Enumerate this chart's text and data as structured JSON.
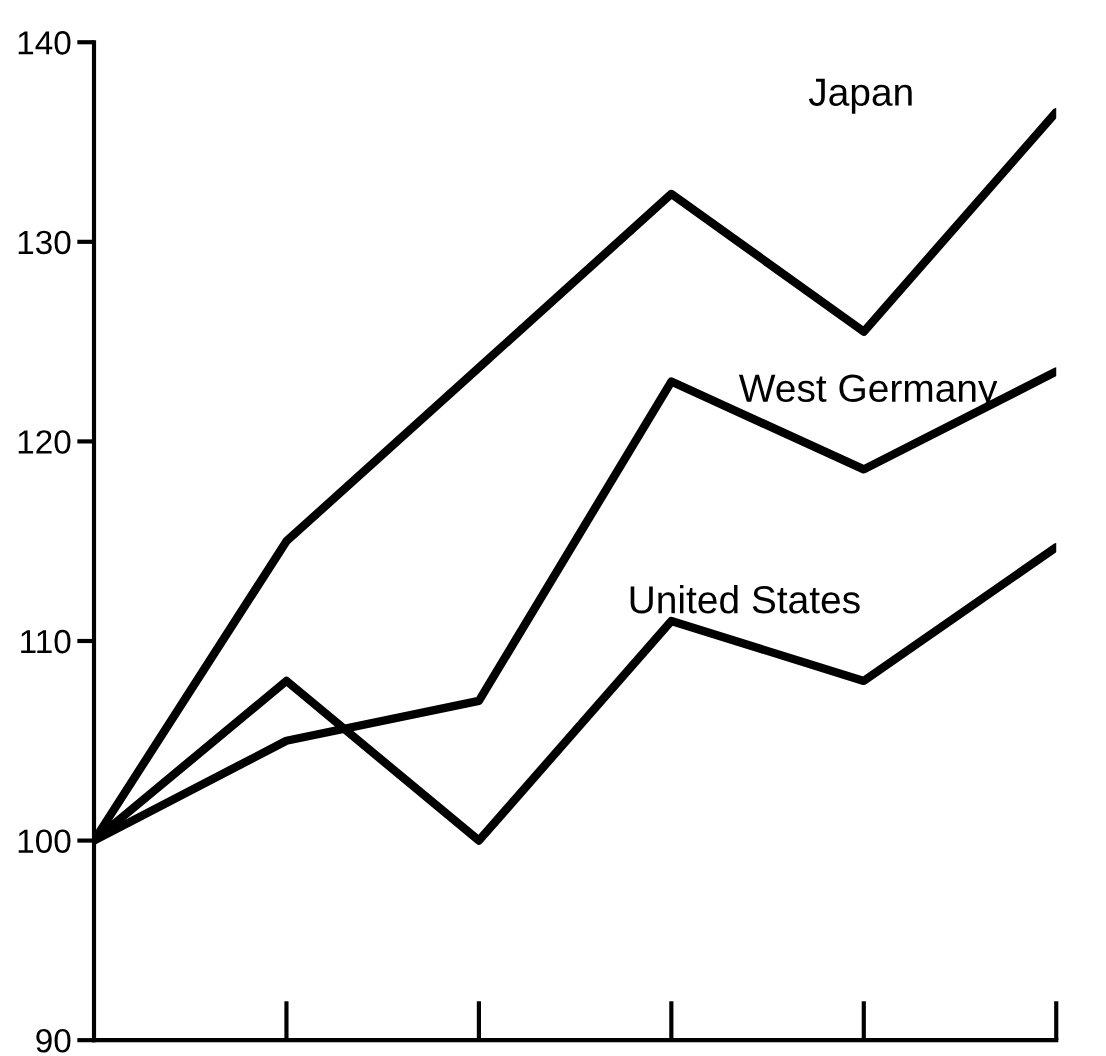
{
  "chart_data": {
    "type": "line",
    "categories": [
      null,
      null,
      null,
      null,
      null,
      null
    ],
    "series": [
      {
        "name": "Japan",
        "color": "#000000",
        "values": [
          100,
          115,
          123.7,
          132.4,
          125.5,
          136.5
        ]
      },
      {
        "name": "West Germany",
        "color": "#000000",
        "values": [
          100,
          105,
          107,
          123,
          118.6,
          123.5
        ]
      },
      {
        "name": "United States",
        "color": "#000000",
        "values": [
          100,
          108,
          100,
          111,
          108,
          114.7
        ]
      }
    ],
    "ylim": [
      90,
      140
    ],
    "yticks": [
      90,
      100,
      110,
      120,
      130,
      140
    ],
    "grid": false,
    "legend": false,
    "marker": "none",
    "line_style": "solid"
  }
}
